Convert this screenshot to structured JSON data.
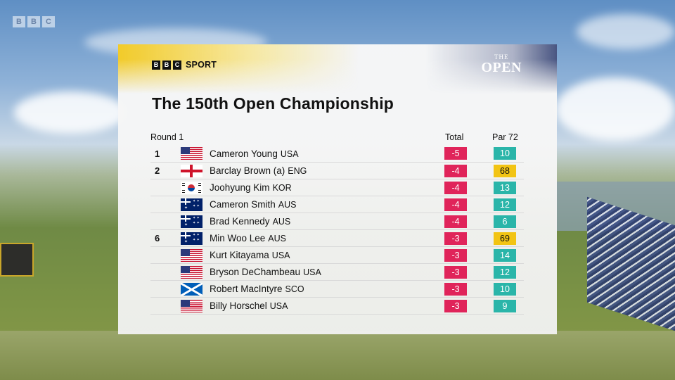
{
  "corner_logo": [
    "B",
    "B",
    "C"
  ],
  "broadcaster": {
    "blocks": [
      "B",
      "B",
      "C"
    ],
    "label": "SPORT"
  },
  "event_logo": {
    "top": "THE",
    "main": "OPEN"
  },
  "title": "The 150th Open Championship",
  "headers": {
    "round": "Round 1",
    "total": "Total",
    "par": "Par 72"
  },
  "colors": {
    "total_bg": "#e0245a",
    "par_teal": "#2ab5a9",
    "par_gold": "#f2c414"
  },
  "rows": [
    {
      "pos": "1",
      "flag": "usa-flag-icon",
      "name": "Cameron Young",
      "country": "USA",
      "total": "-5",
      "score": "10",
      "score_style": "teal"
    },
    {
      "pos": "2",
      "flag": "england-flag-icon",
      "name": "Barclay Brown (a)",
      "country": "ENG",
      "total": "-4",
      "score": "68",
      "score_style": "gold"
    },
    {
      "pos": "",
      "flag": "korea-flag-icon",
      "name": "Joohyung Kim",
      "country": "KOR",
      "total": "-4",
      "score": "13",
      "score_style": "teal"
    },
    {
      "pos": "",
      "flag": "australia-flag-icon",
      "name": "Cameron Smith",
      "country": "AUS",
      "total": "-4",
      "score": "12",
      "score_style": "teal"
    },
    {
      "pos": "",
      "flag": "australia-flag-icon",
      "name": "Brad Kennedy",
      "country": "AUS",
      "total": "-4",
      "score": "6",
      "score_style": "teal"
    },
    {
      "pos": "6",
      "flag": "australia-flag-icon",
      "name": "Min Woo Lee",
      "country": "AUS",
      "total": "-3",
      "score": "69",
      "score_style": "gold"
    },
    {
      "pos": "",
      "flag": "usa-flag-icon",
      "name": "Kurt Kitayama",
      "country": "USA",
      "total": "-3",
      "score": "14",
      "score_style": "teal"
    },
    {
      "pos": "",
      "flag": "usa-flag-icon",
      "name": "Bryson DeChambeau",
      "country": "USA",
      "total": "-3",
      "score": "12",
      "score_style": "teal"
    },
    {
      "pos": "",
      "flag": "scotland-flag-icon",
      "name": "Robert MacIntyre",
      "country": "SCO",
      "total": "-3",
      "score": "10",
      "score_style": "teal"
    },
    {
      "pos": "",
      "flag": "usa-flag-icon",
      "name": "Billy Horschel",
      "country": "USA",
      "total": "-3",
      "score": "9",
      "score_style": "teal"
    }
  ]
}
